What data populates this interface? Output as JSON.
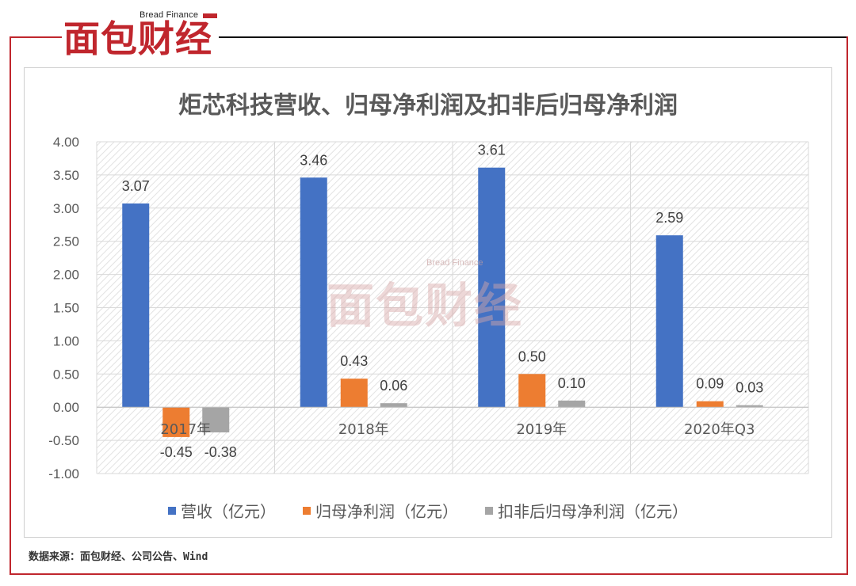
{
  "logo": {
    "subtitle": "Bread Finance",
    "name": "面包财经"
  },
  "watermark": {
    "subtitle": "Bread Finance",
    "name": "面包财经"
  },
  "source": "数据来源：面包财经、公司公告、Wind",
  "colors": {
    "brand_red": "#c0262d",
    "series_blue": "#4472c4",
    "series_orange": "#ed7d31",
    "series_gray": "#a5a5a5"
  },
  "chart_data": {
    "type": "bar",
    "title": "炬芯科技营收、归母净利润及扣非后归母净利润",
    "categories": [
      "2017年",
      "2018年",
      "2019年",
      "2020年Q3"
    ],
    "series": [
      {
        "name": "营收（亿元）",
        "values": [
          3.07,
          3.46,
          3.61,
          2.59
        ],
        "labels": [
          "3.07",
          "3.46",
          "3.61",
          "2.59"
        ]
      },
      {
        "name": "归母净利润（亿元）",
        "values": [
          -0.45,
          0.43,
          0.5,
          0.09
        ],
        "labels": [
          "-0.45",
          "0.43",
          "0.50",
          "0.09"
        ]
      },
      {
        "name": "扣非后归母净利润（亿元）",
        "values": [
          -0.38,
          0.06,
          0.1,
          0.03
        ],
        "labels": [
          "-0.38",
          "0.06",
          "0.10",
          "0.03"
        ]
      }
    ],
    "ylim": [
      -1.0,
      4.0
    ],
    "yticks": [
      "4.00",
      "3.50",
      "3.00",
      "2.50",
      "2.00",
      "1.50",
      "1.00",
      "0.50",
      "0.00",
      "-0.50",
      "-1.00"
    ],
    "ytick_values": [
      4.0,
      3.5,
      3.0,
      2.5,
      2.0,
      1.5,
      1.0,
      0.5,
      0.0,
      -0.5,
      -1.0
    ],
    "legend_position": "bottom",
    "grid": true
  }
}
